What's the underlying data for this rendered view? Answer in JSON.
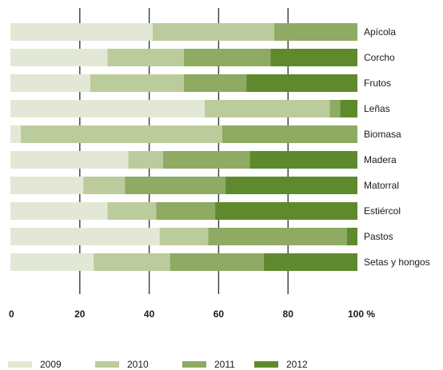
{
  "chart_data": {
    "type": "bar",
    "orientation": "horizontal",
    "stacked": true,
    "categories": [
      "Apícola",
      "Corcho",
      "Frutos",
      "Leñas",
      "Biomasa",
      "Madera",
      "Matorral",
      "Estiércol",
      "Pastos",
      "Setas y hongos"
    ],
    "series": [
      {
        "name": "2009",
        "color": "#e3e8d6",
        "values": [
          41,
          28,
          23,
          56,
          3,
          34,
          21,
          28,
          43,
          24
        ]
      },
      {
        "name": "2010",
        "color": "#bccb9b",
        "values": [
          35,
          22,
          27,
          36,
          58,
          10,
          12,
          14,
          14,
          22
        ]
      },
      {
        "name": "2011",
        "color": "#8eaa63",
        "values": [
          24,
          25,
          18,
          3,
          39,
          25,
          29,
          17,
          40,
          27
        ]
      },
      {
        "name": "2012",
        "color": "#5e8a2d",
        "values": [
          0,
          25,
          32,
          5,
          0,
          31,
          38,
          41,
          3,
          27
        ]
      }
    ],
    "xticks": [
      "0",
      "20",
      "40",
      "60",
      "80",
      "100 %"
    ],
    "xlim": [
      0,
      100
    ],
    "grid": "vertical lines at 20, 40, 60, 80",
    "legend_position": "bottom-left"
  }
}
